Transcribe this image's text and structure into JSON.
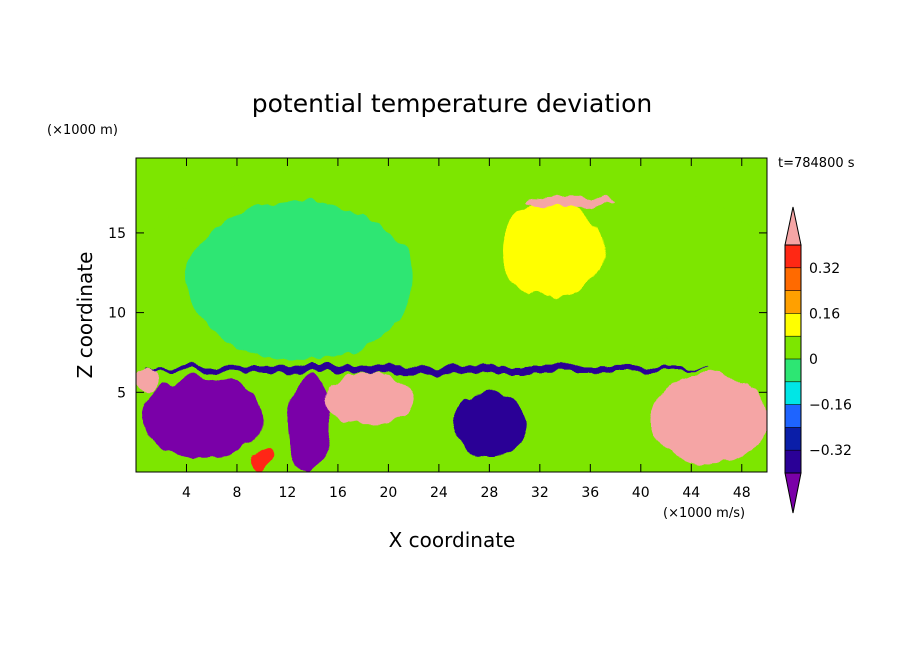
{
  "chart_data": {
    "type": "heatmap",
    "title": "potential temperature deviation",
    "xlabel": "X coordinate",
    "ylabel": "Z coordinate",
    "x_unit": "(×1000 m/s)",
    "y_unit": "(×1000 m)",
    "time_label": "t=784800 s",
    "xlim": [
      0,
      50
    ],
    "ylim": [
      0,
      19.7
    ],
    "x_ticks": [
      4,
      8,
      12,
      16,
      20,
      24,
      28,
      32,
      36,
      40,
      44,
      48
    ],
    "y_ticks": [
      5,
      10,
      15
    ],
    "colorbar": {
      "levels": [
        -0.4,
        -0.32,
        -0.24,
        -0.16,
        -0.08,
        0,
        0.08,
        0.16,
        0.24,
        0.32,
        0.4
      ],
      "labeled_levels": [
        -0.32,
        -0.16,
        0,
        0.16,
        0.32
      ],
      "colors": [
        "#7a00a8",
        "#2a0096",
        "#0a1ea8",
        "#1e64ff",
        "#00e6e6",
        "#2de673",
        "#7de600",
        "#ffff00",
        "#ffa000",
        "#ff6a00",
        "#ff2814",
        "#f5a5a5"
      ],
      "extend": "both"
    },
    "regions": [
      {
        "name": "stratosphere-green",
        "value": 0.04,
        "x": [
          0,
          50
        ],
        "z": [
          6.7,
          19.7
        ]
      },
      {
        "name": "lower-stratosphere-cyan-left",
        "value": -0.02,
        "x": [
          4,
          22
        ],
        "z": [
          7,
          17
        ]
      },
      {
        "name": "upper-warm-yellow",
        "value": 0.14,
        "x": [
          29,
          37
        ],
        "z": [
          11,
          17
        ]
      },
      {
        "name": "upper-warm-spot",
        "value": 0.42,
        "x": [
          31,
          38
        ],
        "z": [
          16.6,
          17.3
        ]
      },
      {
        "name": "tropopause-cold-band",
        "value": -0.36,
        "x": [
          0.5,
          45
        ],
        "z": [
          6.2,
          6.7
        ]
      },
      {
        "name": "boundary-cold-left",
        "value": -0.42,
        "x": [
          0.5,
          10
        ],
        "z": [
          0.8,
          6
        ]
      },
      {
        "name": "boundary-cold-middle",
        "value": -0.42,
        "x": [
          12,
          15.5
        ],
        "z": [
          0,
          6
        ]
      },
      {
        "name": "boundary-cold-right",
        "value": -0.38,
        "x": [
          25,
          31
        ],
        "z": [
          1,
          5
        ]
      },
      {
        "name": "boundary-warm-pink-1",
        "value": 0.42,
        "x": [
          15,
          22
        ],
        "z": [
          3,
          6.2
        ]
      },
      {
        "name": "boundary-warm-pink-2",
        "value": 0.42,
        "x": [
          41,
          50
        ],
        "z": [
          0.5,
          6.2
        ]
      },
      {
        "name": "boundary-warm-pink-left",
        "value": 0.42,
        "x": [
          0,
          2
        ],
        "z": [
          5,
          6.5
        ]
      },
      {
        "name": "surface-warm-spot",
        "value": 0.38,
        "x": [
          9,
          11
        ],
        "z": [
          0.2,
          1.5
        ]
      }
    ]
  }
}
